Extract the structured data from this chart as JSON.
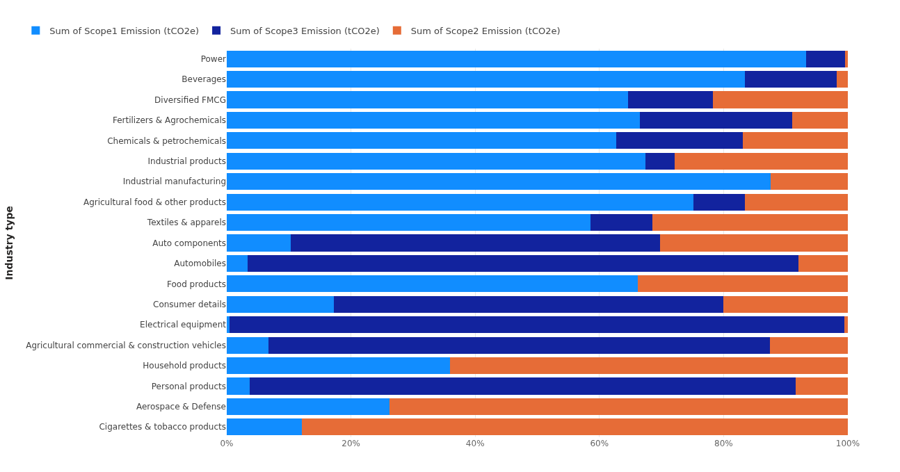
{
  "chart_data": {
    "type": "bar",
    "orientation": "horizontal",
    "stacked": true,
    "ylabel": "Industry type",
    "categories": [
      "Power",
      "Beverages",
      "Diversified FMCG",
      "Fertilizers & Agrochemicals",
      "Chemicals & petrochemicals",
      "Industrial products",
      "Industrial manufacturing",
      "Agricultural food & other products",
      "Textiles & apparels",
      "Auto components",
      "Automobiles",
      "Food products",
      "Consumer details",
      "Electrical equipment",
      "Agricultural commercial & construction vehicles",
      "Household products",
      "Personal products",
      "Aerospace & Defense",
      "Cigarettes & tobacco products"
    ],
    "series": [
      {
        "name": "Sum of Scope1 Emission (tCO2e)",
        "color": "#118dff",
        "values": [
          93.3,
          83.4,
          64.6,
          66.5,
          62.7,
          67.4,
          87.6,
          75.1,
          58.6,
          10.3,
          3.4,
          66.2,
          17.3,
          0.4,
          6.7,
          36.0,
          3.7,
          26.2,
          12.1
        ]
      },
      {
        "name": "Sum of Scope3 Emission (tCO2e)",
        "color": "#12239e",
        "values": [
          6.3,
          14.8,
          13.7,
          24.5,
          20.4,
          4.7,
          0,
          8.3,
          9.9,
          59.5,
          88.6,
          0,
          62.7,
          99.0,
          80.8,
          0,
          87.9,
          0,
          0
        ]
      },
      {
        "name": "Sum of Scope2 Emission (tCO2e)",
        "color": "#e66c37",
        "values": [
          0.4,
          1.8,
          21.7,
          9.0,
          16.9,
          27.9,
          12.4,
          16.6,
          31.5,
          30.2,
          8.0,
          33.8,
          20.0,
          0.6,
          12.5,
          64.0,
          8.4,
          73.8,
          87.9
        ]
      }
    ],
    "xlim": [
      0,
      100
    ],
    "xticks": [
      {
        "value": 0,
        "label": "0%"
      },
      {
        "value": 20,
        "label": "20%"
      },
      {
        "value": 40,
        "label": "40%"
      },
      {
        "value": 60,
        "label": "60%"
      },
      {
        "value": 80,
        "label": "80%"
      },
      {
        "value": 100,
        "label": "100%"
      }
    ],
    "grid": "x",
    "legend": "top left"
  }
}
